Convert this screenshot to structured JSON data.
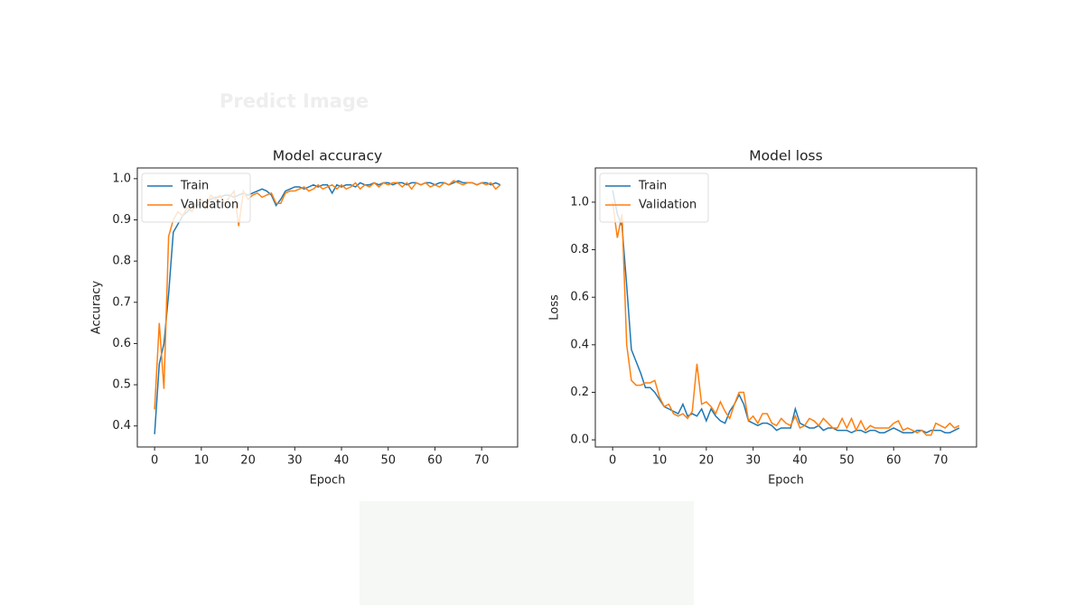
{
  "header": {
    "title": "Predict Image"
  },
  "chart_data": [
    {
      "type": "line",
      "title": "Model accuracy",
      "xlabel": "Epoch",
      "ylabel": "Accuracy",
      "x": [
        0,
        1,
        2,
        3,
        4,
        5,
        6,
        7,
        8,
        9,
        10,
        11,
        12,
        13,
        14,
        15,
        16,
        17,
        18,
        19,
        20,
        21,
        22,
        23,
        24,
        25,
        26,
        27,
        28,
        29,
        30,
        31,
        32,
        33,
        34,
        35,
        36,
        37,
        38,
        39,
        40,
        41,
        42,
        43,
        44,
        45,
        46,
        47,
        48,
        49,
        50,
        51,
        52,
        53,
        54,
        55,
        56,
        57,
        58,
        59,
        60,
        61,
        62,
        63,
        64,
        65,
        66,
        67,
        68,
        69,
        70,
        71,
        72,
        73,
        74
      ],
      "series": [
        {
          "name": "Train",
          "color": "#1f77b4",
          "values": [
            0.38,
            0.55,
            0.6,
            0.72,
            0.87,
            0.89,
            0.91,
            0.92,
            0.93,
            0.935,
            0.94,
            0.945,
            0.95,
            0.955,
            0.955,
            0.96,
            0.96,
            0.955,
            0.96,
            0.965,
            0.96,
            0.965,
            0.97,
            0.975,
            0.97,
            0.96,
            0.935,
            0.95,
            0.97,
            0.975,
            0.98,
            0.98,
            0.975,
            0.98,
            0.985,
            0.98,
            0.985,
            0.985,
            0.965,
            0.985,
            0.98,
            0.985,
            0.985,
            0.98,
            0.99,
            0.985,
            0.985,
            0.99,
            0.985,
            0.99,
            0.99,
            0.985,
            0.99,
            0.99,
            0.985,
            0.99,
            0.99,
            0.985,
            0.99,
            0.99,
            0.985,
            0.99,
            0.99,
            0.985,
            0.99,
            0.995,
            0.99,
            0.99,
            0.99,
            0.985,
            0.99,
            0.99,
            0.985,
            0.99,
            0.985
          ]
        },
        {
          "name": "Validation",
          "color": "#ff7f0e",
          "values": [
            0.44,
            0.65,
            0.49,
            0.86,
            0.9,
            0.92,
            0.91,
            0.93,
            0.92,
            0.94,
            0.95,
            0.93,
            0.96,
            0.95,
            0.96,
            0.94,
            0.955,
            0.97,
            0.885,
            0.97,
            0.95,
            0.96,
            0.965,
            0.955,
            0.96,
            0.965,
            0.94,
            0.94,
            0.965,
            0.97,
            0.97,
            0.975,
            0.98,
            0.97,
            0.975,
            0.985,
            0.975,
            0.98,
            0.985,
            0.975,
            0.985,
            0.975,
            0.98,
            0.99,
            0.975,
            0.985,
            0.98,
            0.99,
            0.98,
            0.99,
            0.985,
            0.99,
            0.99,
            0.98,
            0.99,
            0.975,
            0.99,
            0.985,
            0.99,
            0.98,
            0.985,
            0.98,
            0.99,
            0.985,
            0.995,
            0.99,
            0.985,
            0.99,
            0.99,
            0.985,
            0.99,
            0.985,
            0.99,
            0.975,
            0.985
          ]
        }
      ],
      "xlim": [
        -3.7,
        77.7
      ],
      "ylim": [
        0.349,
        1.026
      ],
      "xticks": [
        0,
        10,
        20,
        30,
        40,
        50,
        60,
        70
      ],
      "yticks": [
        0.4,
        0.5,
        0.6,
        0.7,
        0.8,
        0.9,
        {
          "value": 1,
          "label": "1.0"
        }
      ],
      "legend": "upper left"
    },
    {
      "type": "line",
      "title": "Model loss",
      "xlabel": "Epoch",
      "ylabel": "Loss",
      "x": [
        0,
        1,
        2,
        3,
        4,
        5,
        6,
        7,
        8,
        9,
        10,
        11,
        12,
        13,
        14,
        15,
        16,
        17,
        18,
        19,
        20,
        21,
        22,
        23,
        24,
        25,
        26,
        27,
        28,
        29,
        30,
        31,
        32,
        33,
        34,
        35,
        36,
        37,
        38,
        39,
        40,
        41,
        42,
        43,
        44,
        45,
        46,
        47,
        48,
        49,
        50,
        51,
        52,
        53,
        54,
        55,
        56,
        57,
        58,
        59,
        60,
        61,
        62,
        63,
        64,
        65,
        66,
        67,
        68,
        69,
        70,
        71,
        72,
        73,
        74
      ],
      "series": [
        {
          "name": "Train",
          "color": "#1f77b4",
          "values": [
            1.05,
            0.95,
            0.9,
            0.65,
            0.38,
            0.33,
            0.28,
            0.22,
            0.22,
            0.2,
            0.17,
            0.14,
            0.13,
            0.12,
            0.11,
            0.15,
            0.1,
            0.11,
            0.1,
            0.13,
            0.08,
            0.13,
            0.1,
            0.08,
            0.07,
            0.12,
            0.15,
            0.19,
            0.15,
            0.08,
            0.07,
            0.06,
            0.07,
            0.07,
            0.06,
            0.04,
            0.05,
            0.05,
            0.05,
            0.13,
            0.07,
            0.06,
            0.05,
            0.05,
            0.06,
            0.04,
            0.05,
            0.05,
            0.04,
            0.04,
            0.04,
            0.03,
            0.04,
            0.04,
            0.03,
            0.04,
            0.04,
            0.03,
            0.03,
            0.04,
            0.05,
            0.04,
            0.03,
            0.03,
            0.03,
            0.04,
            0.04,
            0.03,
            0.04,
            0.04,
            0.04,
            0.03,
            0.03,
            0.04,
            0.05
          ]
        },
        {
          "name": "Validation",
          "color": "#ff7f0e",
          "values": [
            1.0,
            0.85,
            0.95,
            0.4,
            0.25,
            0.23,
            0.23,
            0.24,
            0.24,
            0.25,
            0.18,
            0.14,
            0.15,
            0.11,
            0.1,
            0.11,
            0.09,
            0.12,
            0.32,
            0.15,
            0.16,
            0.14,
            0.11,
            0.16,
            0.12,
            0.09,
            0.15,
            0.2,
            0.2,
            0.08,
            0.1,
            0.07,
            0.11,
            0.11,
            0.07,
            0.06,
            0.09,
            0.07,
            0.06,
            0.1,
            0.05,
            0.06,
            0.09,
            0.08,
            0.06,
            0.09,
            0.07,
            0.05,
            0.05,
            0.09,
            0.05,
            0.09,
            0.04,
            0.08,
            0.04,
            0.06,
            0.05,
            0.05,
            0.05,
            0.05,
            0.07,
            0.08,
            0.04,
            0.05,
            0.04,
            0.03,
            0.04,
            0.02,
            0.02,
            0.07,
            0.06,
            0.05,
            0.07,
            0.05,
            0.06
          ]
        }
      ],
      "xlim": [
        -3.7,
        77.7
      ],
      "ylim": [
        -0.03,
        1.144
      ],
      "xticks": [
        0,
        10,
        20,
        30,
        40,
        50,
        60,
        70
      ],
      "yticks": [
        {
          "value": 0,
          "label": "0.0"
        },
        0.2,
        0.4,
        0.6,
        0.8,
        {
          "value": 1,
          "label": "1.0"
        }
      ],
      "legend": "upper left"
    }
  ]
}
